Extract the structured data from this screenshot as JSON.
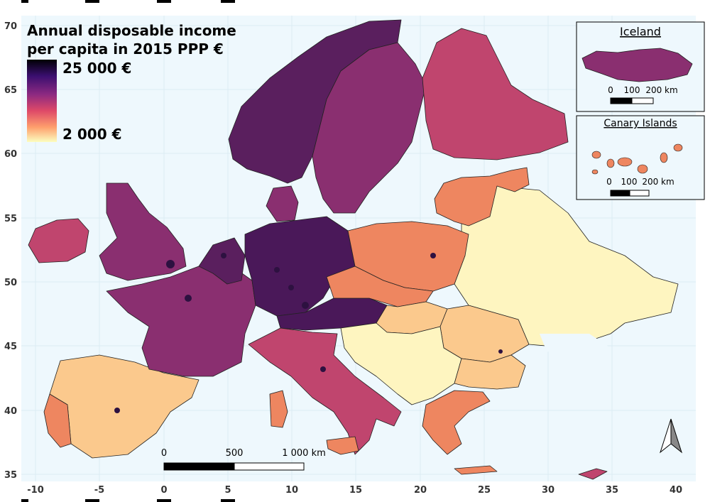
{
  "map": {
    "title_line1": "Annual disposable income",
    "title_line2": "per capita in 2015 PPP €",
    "legend": {
      "max_label": "25 000 €",
      "min_label": "2 000 €",
      "colors": [
        "#000004",
        "#3b0f70",
        "#8c2981",
        "#de4968",
        "#fe9f6d",
        "#fcfdbf"
      ]
    },
    "axes": {
      "x_ticks": [
        "-10",
        "-5",
        "0",
        "5",
        "10",
        "15",
        "20",
        "25",
        "30",
        "35",
        "40"
      ],
      "y_ticks": [
        "70",
        "65",
        "60",
        "55",
        "50",
        "45",
        "40",
        "35"
      ]
    },
    "scale_bar": {
      "labels": [
        "0",
        "500",
        "1 000 km"
      ]
    },
    "insets": [
      {
        "title": "Iceland",
        "scale_labels": [
          "0",
          "100",
          "200 km"
        ]
      },
      {
        "title": "Canary Islands",
        "scale_labels": [
          "0",
          "100",
          "200 km"
        ]
      }
    ],
    "colors": {
      "sea": "#eef8fd",
      "high": "#2d1140",
      "upper": "#5a1f5e",
      "mid": "#8a2f70",
      "middle": "#c0456e",
      "lower": "#ee8660",
      "low": "#fbc98d",
      "lowest": "#fef5c0",
      "border": "#222222"
    }
  }
}
